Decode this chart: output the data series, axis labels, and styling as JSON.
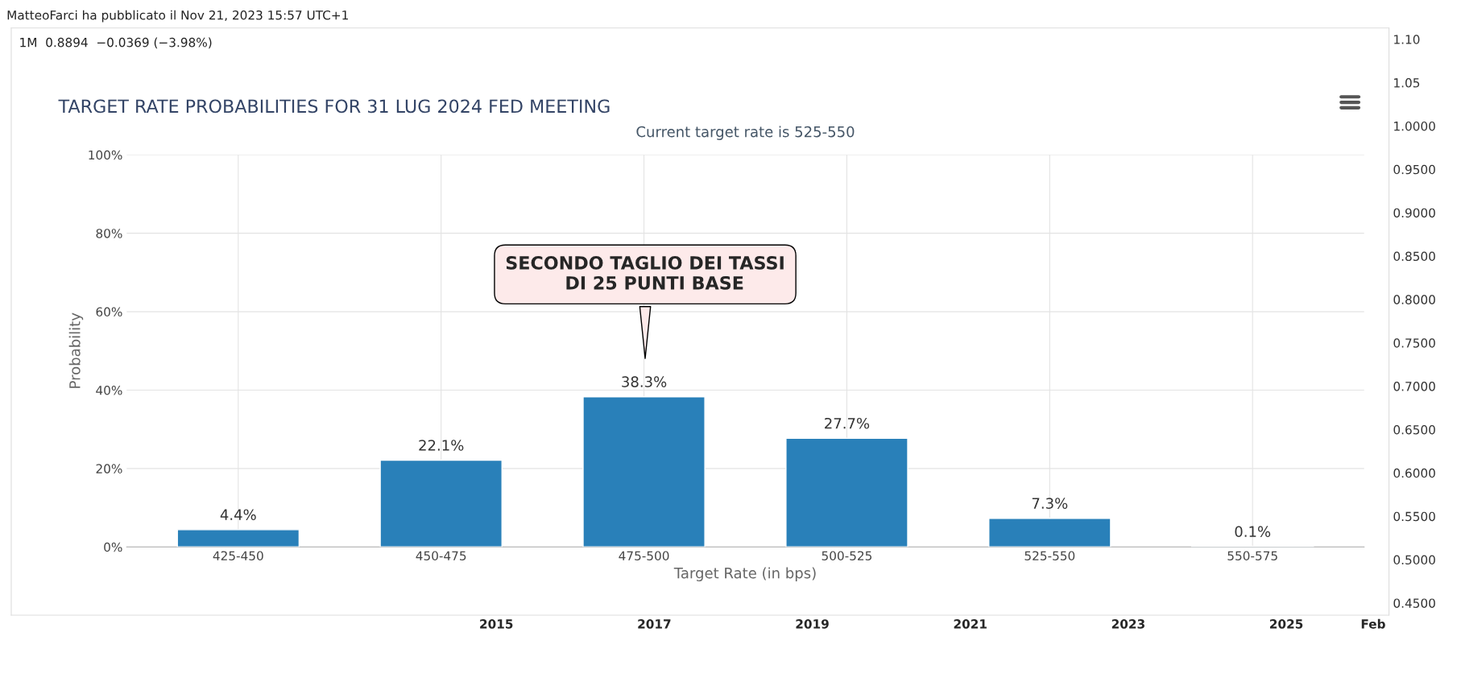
{
  "chart_data": [
    {
      "type": "line",
      "annotations": [
        "MatteoFarci ha pubblicato il Nov 21, 2023 15:57 UTC+1",
        "1M  0.8894  −0.0369 (−3.98%)"
      ],
      "xlim": [
        2008.86,
        2026.3
      ],
      "xticks": [
        2015,
        2017,
        2019,
        2021,
        2023,
        2025,
        {
          "value": 2026.1,
          "label": "Feb"
        }
      ],
      "y2lim": [
        0.436,
        1.113
      ],
      "y2ticks": [
        {
          "value": 0.45,
          "label": "0.4500"
        },
        {
          "value": 0.5,
          "label": "0.5000"
        },
        {
          "value": 0.55,
          "label": "0.5500"
        },
        {
          "value": 0.6,
          "label": "0.6000"
        },
        {
          "value": 0.65,
          "label": "0.6500"
        },
        {
          "value": 0.7,
          "label": "0.7000"
        },
        {
          "value": 0.75,
          "label": "0.7500"
        },
        {
          "value": 0.8,
          "label": "0.8000"
        },
        {
          "value": 0.85,
          "label": "0.8500"
        },
        {
          "value": 0.9,
          "label": "0.9000"
        },
        {
          "value": 0.95,
          "label": "0.9500"
        },
        {
          "value": 1.0,
          "label": "1.0000"
        },
        {
          "value": 1.05,
          "label": "1.05"
        },
        {
          "value": 1.1,
          "label": "1.10"
        }
      ],
      "grid": false
    },
    {
      "type": "bar",
      "title": "TARGET RATE PROBABILITIES FOR 31 LUG 2024 FED MEETING",
      "subtitle": "Current target rate is 525-550",
      "xlabel": "Target Rate (in bps)",
      "ylabel": "Probability",
      "categories": [
        "425-450",
        "450-475",
        "475-500",
        "500-525",
        "525-550",
        "550-575"
      ],
      "values": [
        4.4,
        22.1,
        38.3,
        27.7,
        7.3,
        0.1
      ],
      "color": "#2980b9",
      "value_labels": [
        "4.4%",
        "22.1%",
        "38.3%",
        "27.7%",
        "7.3%",
        "0.1%"
      ],
      "ylim": [
        0,
        100
      ],
      "yticks": [
        {
          "value": 0,
          "label": "0%"
        },
        {
          "value": 20,
          "label": "20%"
        },
        {
          "value": 40,
          "label": "40%"
        },
        {
          "value": 60,
          "label": "60%"
        },
        {
          "value": 80,
          "label": "80%"
        },
        {
          "value": 100,
          "label": "100%"
        }
      ],
      "grid": true,
      "annotations": [
        "SECONDO TAGLIO DEI TASSI\n   DI 25 PUNTI BASE"
      ]
    }
  ]
}
